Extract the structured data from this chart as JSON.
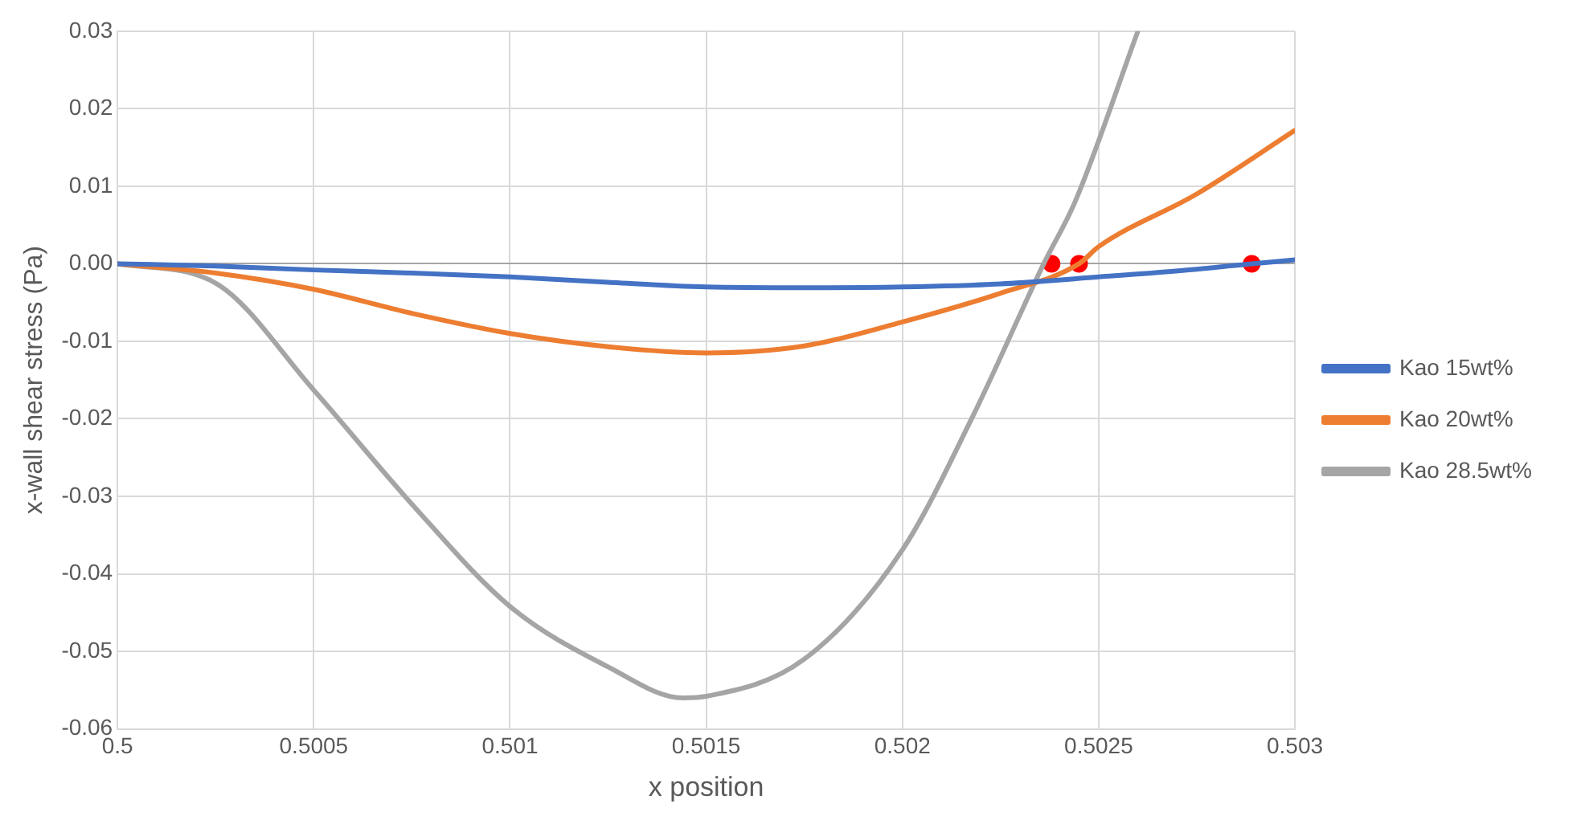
{
  "chart_data": {
    "type": "line",
    "xlabel": "x position",
    "ylabel": "x-wall shear stress (Pa)",
    "xlim": [
      0.5,
      0.503
    ],
    "xticks": [
      0.5,
      0.5005,
      0.501,
      0.5015,
      0.502,
      0.5025,
      0.503
    ],
    "ylim": [
      -0.06,
      0.03
    ],
    "yticks": [
      0.03,
      0.02,
      0.01,
      {
        "value": 0,
        "label": "0.00"
      },
      -0.01,
      -0.02,
      -0.03,
      -0.04,
      -0.05,
      -0.06
    ],
    "grid": true,
    "legend": "right",
    "marker": "none",
    "line_style": "solid",
    "series": [
      {
        "name": "Kao 15wt%",
        "color": "#4472c4",
        "x": [
          0.5,
          0.50025,
          0.5005,
          0.50075,
          0.501,
          0.50125,
          0.5015,
          0.50175,
          0.502,
          0.50225,
          0.5025,
          0.50275,
          0.50289,
          0.503
        ],
        "values": [
          0,
          -0.0003,
          -0.0008,
          -0.0012,
          -0.0017,
          -0.0024,
          -0.003,
          -0.0031,
          -0.003,
          -0.0026,
          -0.0017,
          -0.0007,
          0,
          0.0005
        ]
      },
      {
        "name": "Kao 20wt%",
        "color": "#ed7d31",
        "x": [
          0.5,
          0.50025,
          0.5005,
          0.50075,
          0.501,
          0.50125,
          0.5015,
          0.50175,
          0.502,
          0.50225,
          0.50245,
          0.5025,
          0.50275,
          0.503
        ],
        "values": [
          0,
          -0.0012,
          -0.0033,
          -0.0064,
          -0.009,
          -0.0107,
          -0.0115,
          -0.0106,
          -0.0075,
          -0.0038,
          0,
          0.0022,
          0.009,
          0.0172
        ]
      },
      {
        "name": "Kao 28.5wt%",
        "color": "#a5a5a5",
        "x": [
          0.5,
          0.50025,
          0.5005,
          0.50075,
          0.501,
          0.50125,
          0.50144,
          0.5015,
          0.50175,
          0.502,
          0.50218,
          0.50236,
          0.50244,
          0.5026
        ],
        "values": [
          0,
          -0.0025,
          -0.0163,
          -0.031,
          -0.0442,
          -0.052,
          -0.056,
          -0.0558,
          -0.051,
          -0.0369,
          -0.0196,
          0,
          0.008,
          0.03
        ]
      },
      {
        "type": "scatter",
        "colors": [
          "#ff0000",
          "#ff0000",
          "#ff0000"
        ],
        "x": [
          0.50238,
          0.50245,
          0.50289
        ],
        "values": [
          0,
          0,
          0
        ],
        "marker": "circle"
      }
    ]
  }
}
